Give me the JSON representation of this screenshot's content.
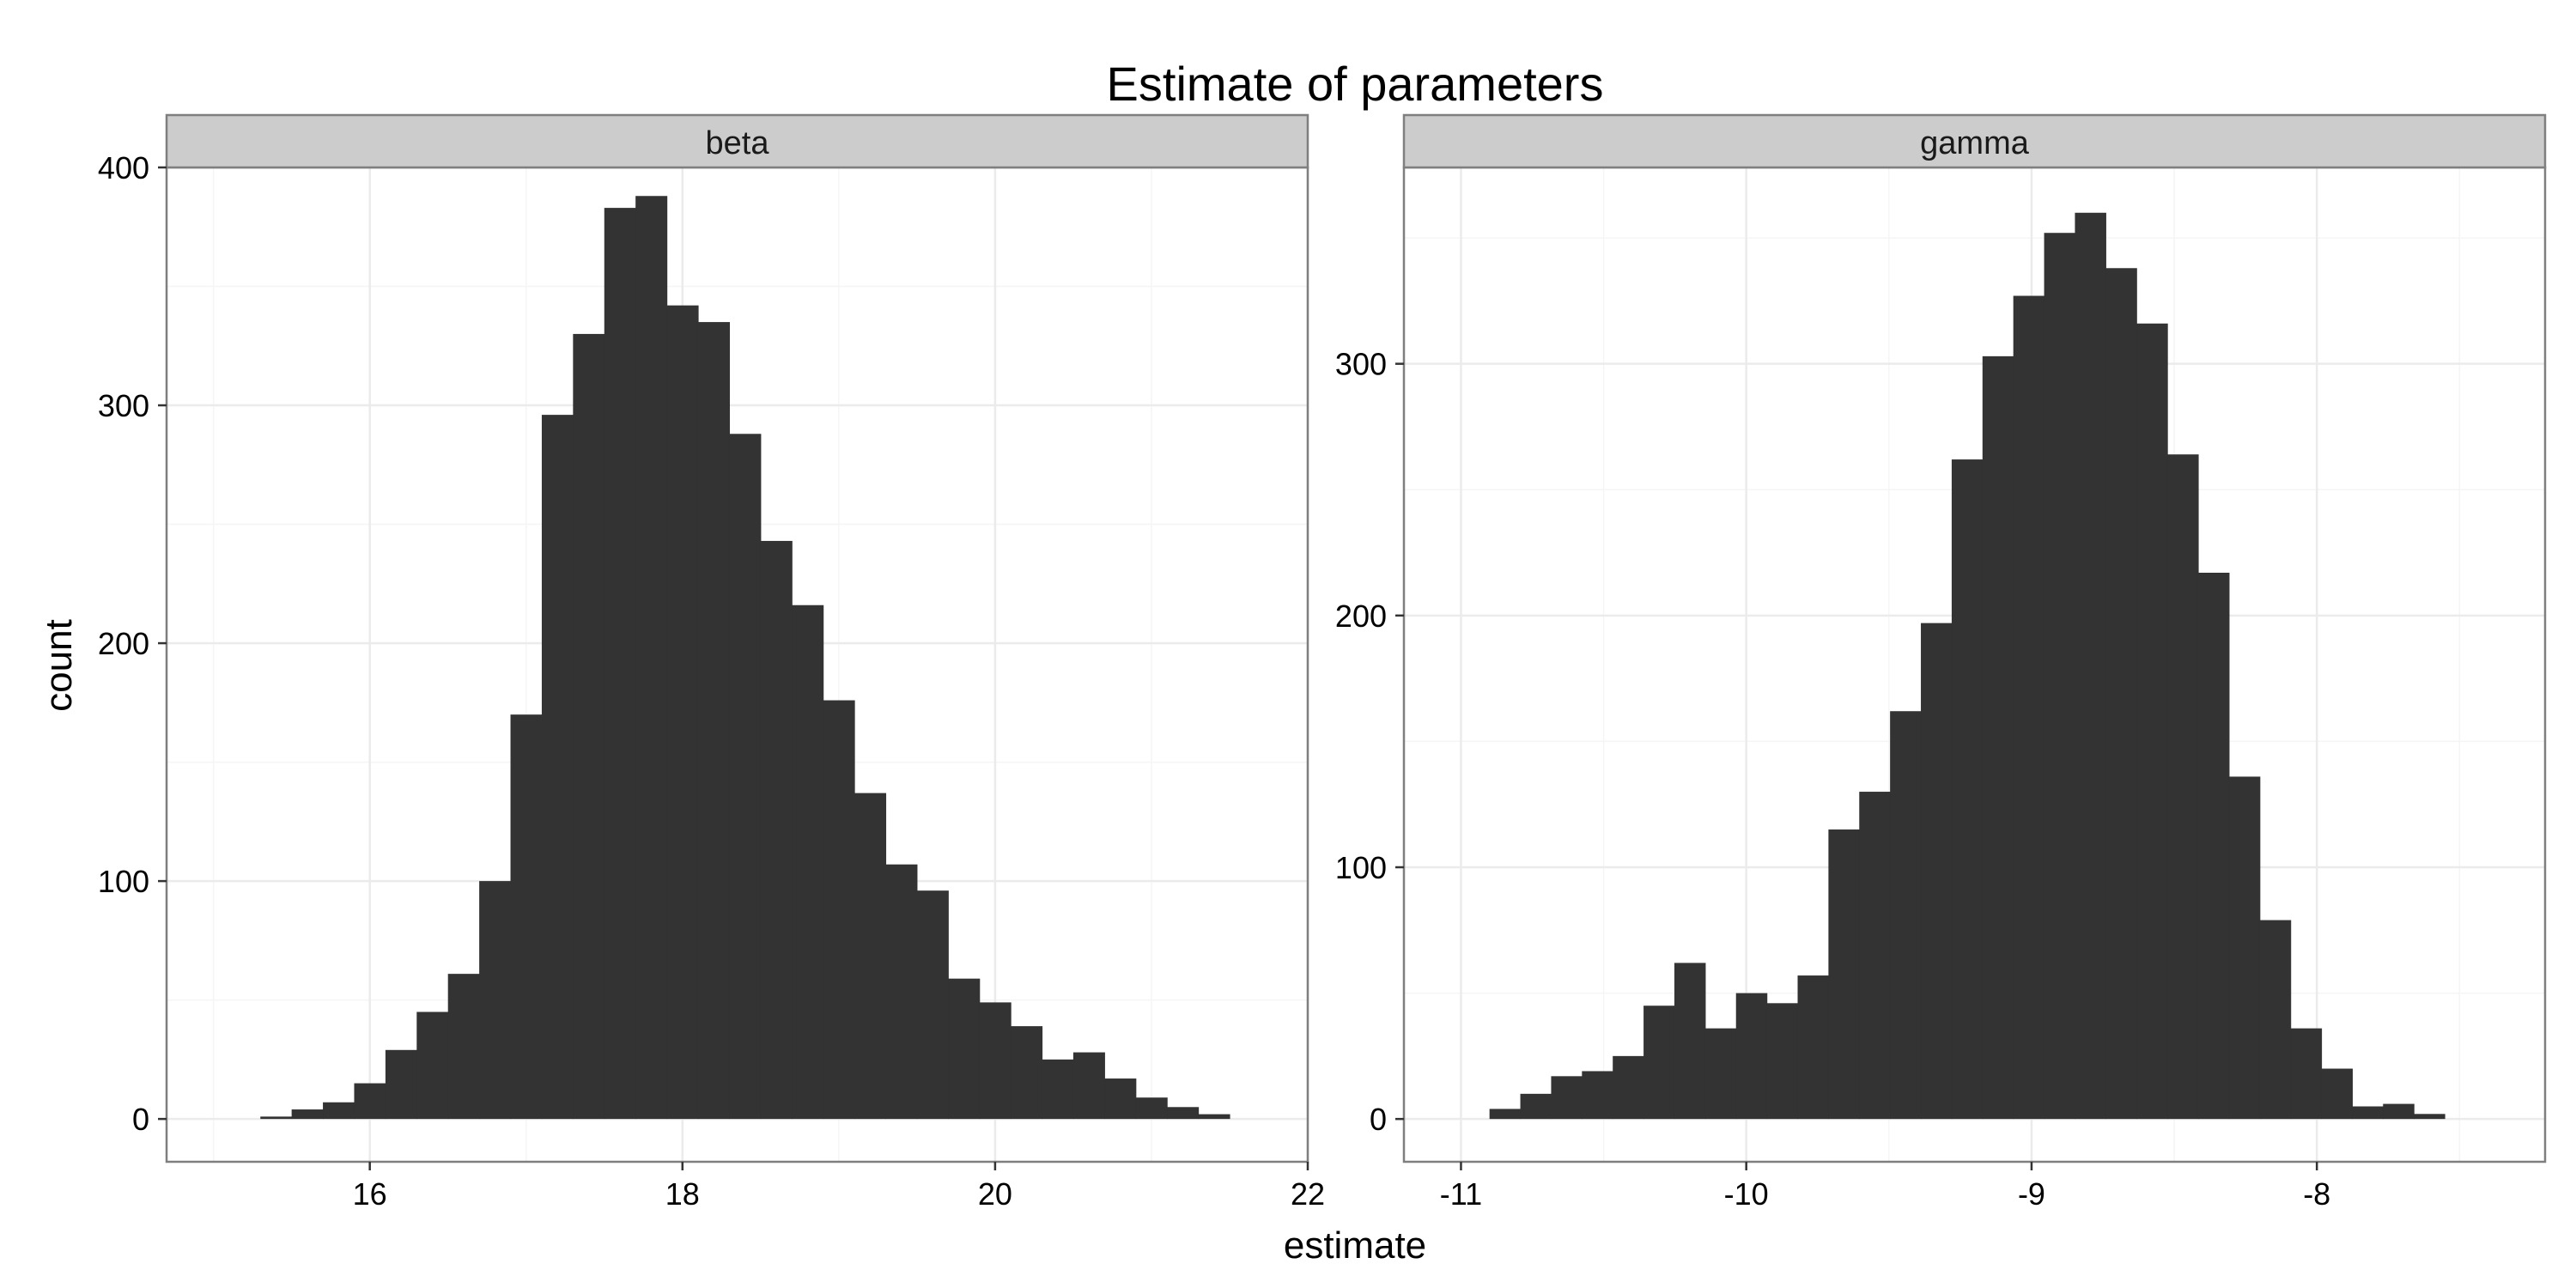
{
  "chart_data": {
    "type": "bar",
    "title": "Estimate of parameters",
    "xlabel": "estimate",
    "ylabel": "count",
    "grid": true,
    "facets": [
      {
        "name": "beta",
        "xlim": [
          14.7,
          22.0
        ],
        "ylim": [
          -18,
          400
        ],
        "xticks": [
          16,
          18,
          20,
          22
        ],
        "yticks": [
          0,
          100,
          200,
          300,
          400
        ],
        "binwidth": 0.2,
        "bin_start": 15.3,
        "counts": [
          1,
          4,
          7,
          15,
          29,
          45,
          61,
          100,
          170,
          296,
          330,
          383,
          388,
          342,
          335,
          288,
          243,
          216,
          176,
          137,
          107,
          96,
          59,
          49,
          39,
          25,
          28,
          17,
          9,
          5,
          2
        ]
      },
      {
        "name": "gamma",
        "xlim": [
          -11.2,
          -7.2
        ],
        "ylim": [
          -17,
          378
        ],
        "xticks": [
          -11,
          -10,
          -9,
          -8
        ],
        "yticks": [
          0,
          100,
          200,
          300
        ],
        "binwidth": 0.108,
        "bin_start": -10.9,
        "counts": [
          4,
          10,
          17,
          19,
          25,
          45,
          62,
          36,
          50,
          46,
          57,
          115,
          130,
          162,
          197,
          262,
          303,
          327,
          352,
          360,
          338,
          316,
          264,
          217,
          136,
          79,
          36,
          20,
          5,
          6,
          2
        ]
      }
    ]
  }
}
